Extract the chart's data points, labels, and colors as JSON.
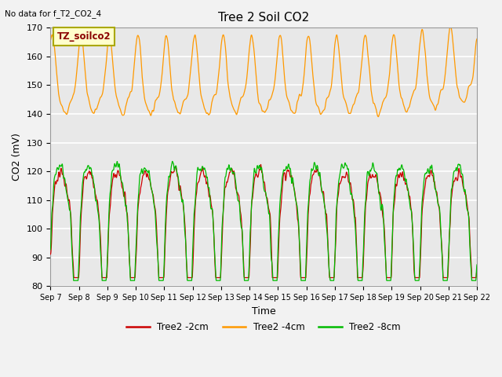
{
  "title": "Tree 2 Soil CO2",
  "subtitle": "No data for f_T2_CO2_4",
  "xlabel": "Time",
  "ylabel": "CO2 (mV)",
  "ylim": [
    80,
    170
  ],
  "x_tick_labels": [
    "Sep 7",
    "Sep 8",
    "Sep 9",
    "Sep 10",
    "Sep 11",
    "Sep 12",
    "Sep 13",
    "Sep 14",
    "Sep 15",
    "Sep 16",
    "Sep 17",
    "Sep 18",
    "Sep 19",
    "Sep 20",
    "Sep 21",
    "Sep 22"
  ],
  "color_2cm": "#cc0000",
  "color_4cm": "#ff9900",
  "color_8cm": "#00bb00",
  "legend_label_2cm": "Tree2 -2cm",
  "legend_label_4cm": "Tree2 -4cm",
  "legend_label_8cm": "Tree2 -8cm",
  "annotation_box": "TZ_soilco2",
  "plot_bg": "#e8e8e8",
  "n_points": 2000
}
